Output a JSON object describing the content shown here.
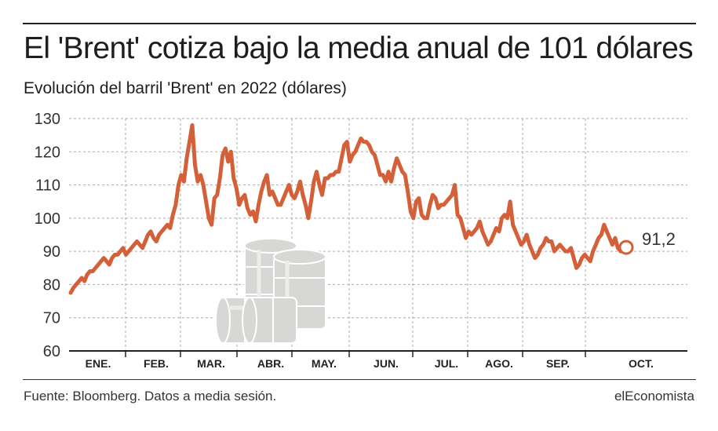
{
  "title": "El 'Brent' cotiza bajo la media anual de 101 dólares",
  "subtitle": "Evolución del barril 'Brent' en 2022 (dólares)",
  "footer": {
    "source": "Fuente: Bloomberg. Datos a media sesión.",
    "brand": "elEconomista"
  },
  "colors": {
    "line": "#d4603a",
    "grid": "#aaaaaa",
    "axis": "#222222",
    "barrels": "#d7d7d5"
  },
  "icons": {
    "illustration": "oil-barrels-icon"
  },
  "chart_data": {
    "type": "line",
    "title": "Evolución del barril 'Brent' en 2022 (dólares)",
    "xlabel": "",
    "ylabel": "",
    "ylim": [
      60,
      130
    ],
    "yticks": [
      60,
      70,
      80,
      90,
      100,
      110,
      120,
      130
    ],
    "ytick_labels": [
      "60",
      "70",
      "80",
      "90",
      "100",
      "110",
      "120",
      "130"
    ],
    "xtick_labels": [
      "ENE.",
      "FEB.",
      "MAR.",
      "ABR.",
      "MAY.",
      "JUN.",
      "JUL.",
      "AGO.",
      "SEP.",
      "OCT."
    ],
    "grid": true,
    "last_value_label": "91,2",
    "series": [
      {
        "values": [
          77.5,
          79,
          80,
          81,
          82,
          81,
          83,
          84,
          84,
          85,
          86,
          87,
          88,
          87,
          86,
          88,
          89,
          89,
          90,
          91,
          89,
          90,
          91,
          92,
          93,
          92,
          91,
          93,
          95,
          96,
          94,
          93,
          95,
          96,
          97,
          98,
          97,
          101,
          104,
          110,
          113,
          111,
          118,
          123,
          128,
          116,
          111,
          113,
          110,
          105,
          100,
          98,
          106,
          107,
          112,
          119,
          121,
          117,
          120,
          112,
          109,
          104,
          106,
          107,
          103,
          101,
          102,
          99,
          104,
          108,
          111,
          113,
          107,
          108,
          106,
          104,
          104,
          106,
          108,
          110,
          107,
          106,
          108,
          111,
          107,
          104,
          100,
          105,
          111,
          114,
          110,
          107,
          112,
          112,
          113,
          113,
          114,
          114,
          118,
          122,
          123,
          117,
          119,
          120,
          122,
          124,
          123,
          123,
          122,
          120,
          119,
          116,
          113,
          113,
          111,
          114,
          111,
          115,
          118,
          116,
          114,
          113,
          108,
          102,
          100,
          105,
          106,
          101,
          100,
          100,
          104,
          107,
          106,
          103,
          104,
          104,
          105,
          106,
          107,
          110,
          101,
          100,
          97,
          94,
          96,
          95,
          96,
          97,
          99,
          96,
          94,
          92,
          93,
          95,
          97,
          96,
          100,
          101,
          100,
          105,
          98,
          96,
          94,
          92,
          93,
          95,
          92,
          90,
          88,
          89,
          91,
          92,
          94,
          93,
          93,
          90,
          91,
          92,
          91,
          90,
          90,
          91,
          88,
          85,
          86,
          88,
          89,
          88,
          87,
          90,
          92,
          94,
          95,
          98,
          96,
          94,
          92,
          94,
          91,
          90,
          92,
          91.2
        ]
      }
    ]
  }
}
